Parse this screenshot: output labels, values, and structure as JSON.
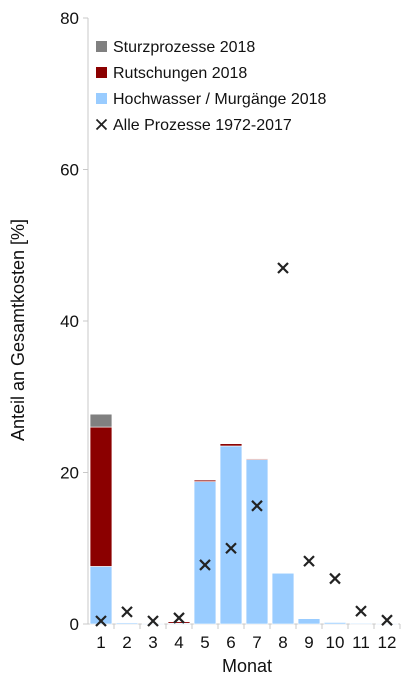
{
  "chart_data": {
    "type": "bar",
    "stacked": true,
    "xlabel": "Monat",
    "ylabel": "Anteil an Gesamtkosten [%]",
    "ylim": [
      0,
      80
    ],
    "yticks": [
      "0",
      "20",
      "40",
      "60",
      "80"
    ],
    "categories": [
      "1",
      "2",
      "3",
      "4",
      "5",
      "6",
      "7",
      "8",
      "9",
      "10",
      "11",
      "12"
    ],
    "series": [
      {
        "name": "Hochwasser / Murgänge 2018",
        "kind": "bar",
        "color": "#99ccff",
        "values": [
          7.6,
          0.15,
          0.05,
          0.1,
          18.8,
          23.5,
          21.7,
          6.7,
          0.7,
          0.2,
          0.1,
          0.05
        ]
      },
      {
        "name": "Rutschungen 2018",
        "kind": "bar",
        "color": "#8b0000",
        "values": [
          18.4,
          0,
          0,
          0.2,
          0.2,
          0.3,
          0.1,
          0,
          0,
          0,
          0,
          0
        ]
      },
      {
        "name": "Sturzprozesse 2018",
        "kind": "bar",
        "color": "#808080",
        "values": [
          1.7,
          0,
          0,
          0,
          0,
          0,
          0,
          0,
          0,
          0,
          0,
          0
        ]
      },
      {
        "name": "Alle Prozesse 1972-2017",
        "kind": "marker",
        "color": "#222222",
        "values": [
          0.4,
          1.6,
          0.4,
          0.8,
          7.8,
          10.0,
          15.6,
          47.0,
          8.3,
          6.0,
          1.7,
          0.5
        ]
      }
    ],
    "legend_order": [
      "Sturzprozesse 2018",
      "Rutschungen 2018",
      "Hochwasser / Murgänge 2018",
      "Alle Prozesse 1972-2017"
    ],
    "legend_position": "top-left",
    "grid": false
  }
}
